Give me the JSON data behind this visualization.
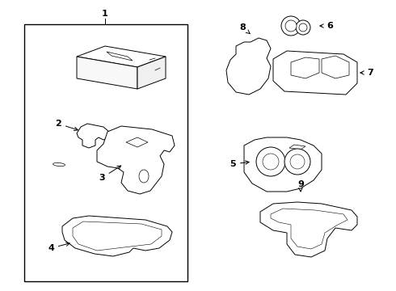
{
  "background_color": "#ffffff",
  "line_color": "#000000",
  "lw": 0.7,
  "fig_w": 4.9,
  "fig_h": 3.6,
  "dpi": 100
}
